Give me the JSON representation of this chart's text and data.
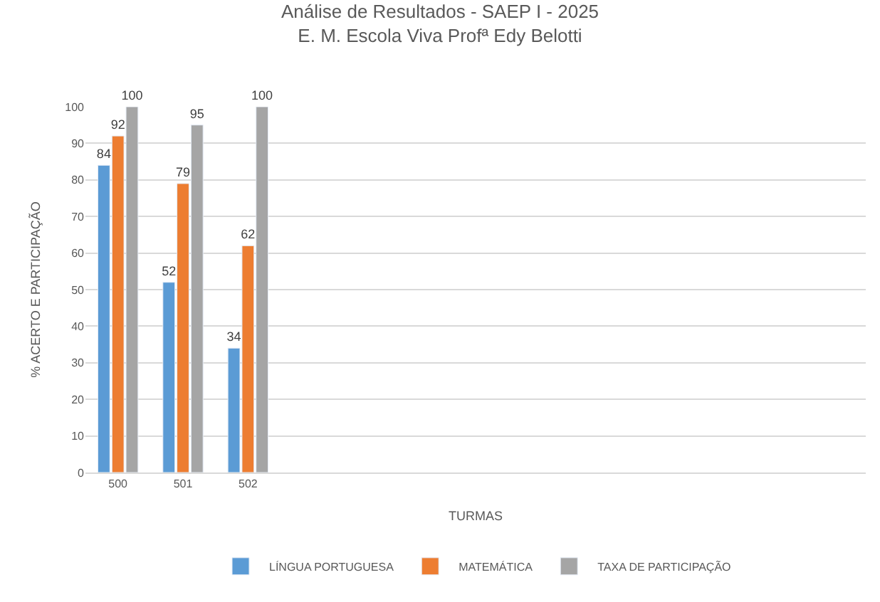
{
  "chart_data": {
    "type": "bar",
    "title": "Análise de Resultados - SAEP I - 2025",
    "subtitle": "E. M. Escola Viva Profª Edy Belotti",
    "xlabel": "TURMAS",
    "ylabel": "% ACERTO E PARTICIPAÇÃO",
    "categories": [
      "500",
      "501",
      "502",
      null,
      null,
      null,
      null,
      null,
      null,
      null,
      null,
      null
    ],
    "series": [
      {
        "name": "LÍNGUA PORTUGUESA",
        "color": "#5b9bd5",
        "values": [
          84,
          52,
          34,
          null,
          null,
          null,
          null,
          null,
          null,
          null,
          null,
          null
        ]
      },
      {
        "name": "MATEMÁTICA",
        "color": "#ed7d31",
        "values": [
          92,
          79,
          62,
          null,
          null,
          null,
          null,
          null,
          null,
          null,
          null,
          null
        ]
      },
      {
        "name": "TAXA DE PARTICIPAÇÃO",
        "color": "#a5a5a5",
        "values": [
          100,
          95,
          100,
          null,
          null,
          null,
          null,
          null,
          null,
          null,
          null,
          null
        ]
      }
    ],
    "ylim": [
      0,
      100
    ],
    "yticks": [
      0,
      10,
      20,
      30,
      40,
      50,
      60,
      70,
      80,
      90,
      100
    ],
    "grid": "y",
    "legend": "bottom",
    "data_labels": true
  }
}
